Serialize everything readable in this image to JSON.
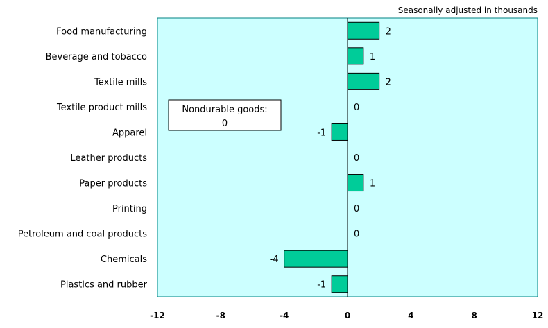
{
  "chart_data": {
    "type": "bar",
    "orientation": "horizontal",
    "subtitle": "Seasonally adjusted in thousands",
    "categories": [
      "Food manufacturing",
      "Beverage and tobacco",
      "Textile mills",
      "Textile product mills",
      "Apparel",
      "Leather products",
      "Paper products",
      "Printing",
      "Petroleum and coal products",
      "Chemicals",
      "Plastics and rubber"
    ],
    "values": [
      2,
      1,
      2,
      0,
      -1,
      0,
      1,
      0,
      0,
      -4,
      -1
    ],
    "data_labels": [
      "2",
      "1",
      "2",
      "0",
      "-1",
      "0",
      "1",
      "0",
      "0",
      "-4",
      "-1"
    ],
    "xlim": [
      -12,
      12
    ],
    "xticks": [
      -12,
      -8,
      -4,
      0,
      4,
      8,
      12
    ],
    "xtick_labels": [
      "-12",
      "-8",
      "-4",
      "0",
      "4",
      "8",
      "12"
    ],
    "grid": false,
    "legend": "none",
    "callout": {
      "line1": "Nondurable goods:",
      "line2": "0"
    },
    "colors": {
      "plot_background": "#ccffff",
      "bar_fill": "#00cc99",
      "bar_stroke": "#000000",
      "frame": "#008080"
    }
  }
}
